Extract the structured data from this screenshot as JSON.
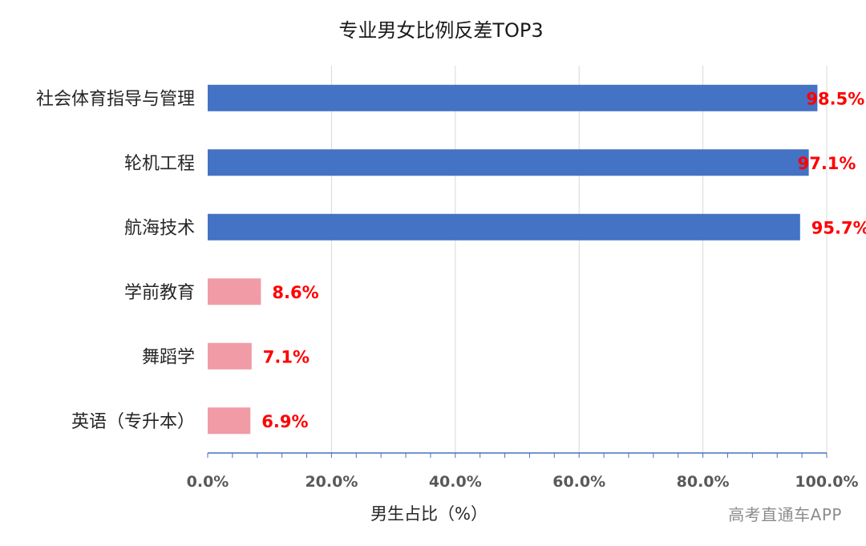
{
  "chart_data": {
    "type": "bar",
    "orientation": "horizontal",
    "title": "专业男女比例反差TOP3",
    "xlabel": "男生占比（%）",
    "ylabel": "",
    "xlim": [
      0,
      100
    ],
    "x_ticks": [
      "0.0%",
      "20.0%",
      "40.0%",
      "60.0%",
      "80.0%",
      "100.0%"
    ],
    "grid": true,
    "categories": [
      "社会体育指导与管理",
      "轮机工程",
      "航海技术",
      "学前教育",
      "舞蹈学",
      "英语（专升本）"
    ],
    "values": [
      98.5,
      97.1,
      95.7,
      8.6,
      7.1,
      6.9
    ],
    "value_labels": [
      "98.5%",
      "97.1%",
      "95.7%",
      "8.6%",
      "7.1%",
      "6.9%"
    ],
    "bar_colors": [
      "#4472c4",
      "#4472c4",
      "#4472c4",
      "#f09ba6",
      "#f09ba6",
      "#f09ba6"
    ],
    "label_color": "#ff0000"
  },
  "watermark": "高考直通车APP"
}
